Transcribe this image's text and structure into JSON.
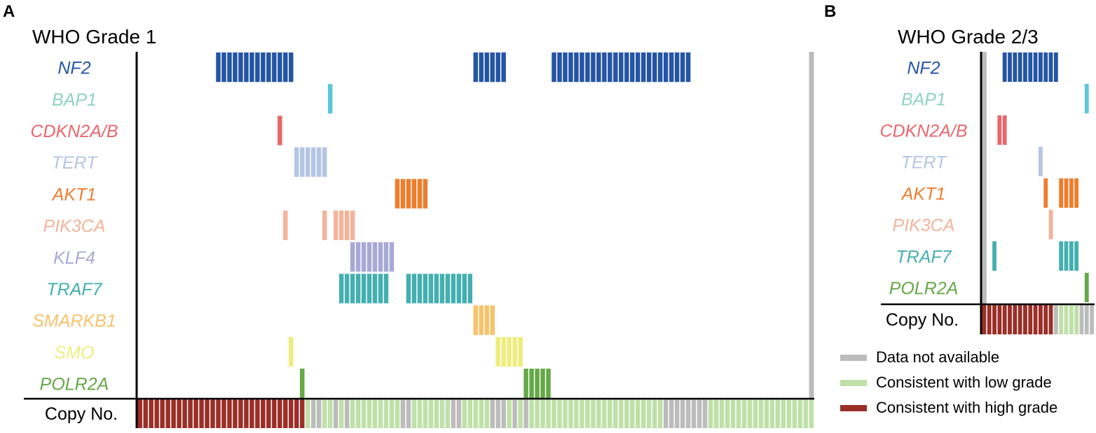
{
  "chart_data": {
    "type": "heatmap",
    "colors": {
      "NF2": "#2455a4",
      "BAP1": "#5cc6d8",
      "CDKN2A/B": "#e8676b",
      "TERT": "#b4c5e3",
      "AKT1": "#ef7d2c",
      "PIK3CA": "#f3b49a",
      "KLF4": "#a7a9d5",
      "TRAF7": "#44afb0",
      "SMARKB1": "#f7c36a",
      "SMO": "#eeec7d",
      "POLR2A": "#65a847",
      "na": "#bcbcbc",
      "low": "#bfe0a8",
      "high": "#9a2f28"
    },
    "label_colors": {
      "NF2": "#2455a4",
      "BAP1": "#8fd3bf",
      "CDKN2A/B": "#e8676b",
      "TERT": "#b4c5e3",
      "AKT1": "#ef7d2c",
      "PIK3CA": "#f3b49a",
      "KLF4": "#a7a9d5",
      "TRAF7": "#44afb0",
      "SMARKB1": "#f7c36a",
      "SMO": "#eeec7d",
      "POLR2A": "#65a847"
    },
    "panels": [
      {
        "letter": "A",
        "title": "WHO Grade 1",
        "n_samples": 121,
        "genes": [
          "NF2",
          "BAP1",
          "CDKN2A/B",
          "TERT",
          "AKT1",
          "PIK3CA",
          "KLF4",
          "TRAF7",
          "SMARKB1",
          "SMO",
          "POLR2A"
        ],
        "alterations": [
          {
            "gene": "NF2",
            "samples": [
              [
                14,
                27
              ],
              [
                60,
                65
              ],
              [
                74,
                98
              ]
            ]
          },
          {
            "gene": "BAP1",
            "samples": [
              [
                34,
                34
              ]
            ]
          },
          {
            "gene": "CDKN2A/B",
            "samples": [
              [
                25,
                25
              ]
            ]
          },
          {
            "gene": "TERT",
            "samples": [
              [
                28,
                33
              ]
            ]
          },
          {
            "gene": "AKT1",
            "samples": [
              [
                46,
                51
              ]
            ]
          },
          {
            "gene": "PIK3CA",
            "samples": [
              [
                26,
                26
              ],
              [
                33,
                33
              ],
              [
                35,
                38
              ]
            ]
          },
          {
            "gene": "KLF4",
            "samples": [
              [
                38,
                45
              ]
            ]
          },
          {
            "gene": "TRAF7",
            "samples": [
              [
                36,
                44
              ],
              [
                48,
                59
              ]
            ]
          },
          {
            "gene": "SMARKB1",
            "samples": [
              [
                60,
                63
              ]
            ]
          },
          {
            "gene": "SMO",
            "samples": [
              [
                27,
                27
              ],
              [
                64,
                68
              ]
            ]
          },
          {
            "gene": "POLR2A",
            "samples": [
              [
                29,
                29
              ],
              [
                69,
                73
              ]
            ]
          }
        ],
        "data_not_available_samples": [
          [
            120,
            120
          ]
        ],
        "copy_number": [
          {
            "status": "high",
            "samples": [
              [
                0,
                29
              ]
            ]
          },
          {
            "status": "low",
            "samples": [
              [
                30,
                30
              ]
            ]
          },
          {
            "status": "na",
            "samples": [
              [
                31,
                32
              ]
            ]
          },
          {
            "status": "low",
            "samples": [
              [
                33,
                34
              ]
            ]
          },
          {
            "status": "na",
            "samples": [
              [
                35,
                35
              ]
            ]
          },
          {
            "status": "low",
            "samples": [
              [
                36,
                35
              ]
            ]
          },
          {
            "status": "low",
            "samples": [
              [
                36,
                36
              ]
            ]
          },
          {
            "status": "na",
            "samples": [
              [
                37,
                37
              ]
            ]
          },
          {
            "status": "low",
            "samples": [
              [
                38,
                46
              ]
            ]
          },
          {
            "status": "na",
            "samples": [
              [
                47,
                48
              ]
            ]
          },
          {
            "status": "low",
            "samples": [
              [
                49,
                55
              ]
            ]
          },
          {
            "status": "na",
            "samples": [
              [
                56,
                57
              ]
            ]
          },
          {
            "status": "low",
            "samples": [
              [
                58,
                62
              ]
            ]
          },
          {
            "status": "na",
            "samples": [
              [
                63,
                65
              ]
            ]
          },
          {
            "status": "low",
            "samples": [
              [
                66,
                66
              ]
            ]
          },
          {
            "status": "na",
            "samples": [
              [
                67,
                67
              ]
            ]
          },
          {
            "status": "low",
            "samples": [
              [
                68,
                68
              ]
            ]
          },
          {
            "status": "na",
            "samples": [
              [
                69,
                69
              ]
            ]
          },
          {
            "status": "low",
            "samples": [
              [
                70,
                93
              ]
            ]
          },
          {
            "status": "na",
            "samples": [
              [
                94,
                101
              ]
            ]
          },
          {
            "status": "low",
            "samples": [
              [
                102,
                120
              ]
            ]
          }
        ]
      },
      {
        "letter": "B",
        "title": "WHO Grade 2/3",
        "n_samples": 22,
        "genes": [
          "NF2",
          "BAP1",
          "CDKN2A/B",
          "TERT",
          "AKT1",
          "PIK3CA",
          "TRAF7",
          "POLR2A"
        ],
        "alterations": [
          {
            "gene": "NF2",
            "samples": [
              [
                4,
                14
              ]
            ]
          },
          {
            "gene": "BAP1",
            "samples": [
              [
                20,
                20
              ]
            ]
          },
          {
            "gene": "CDKN2A/B",
            "samples": [
              [
                3,
                4
              ]
            ]
          },
          {
            "gene": "TERT",
            "samples": [
              [
                11,
                11
              ]
            ]
          },
          {
            "gene": "AKT1",
            "samples": [
              [
                12,
                12
              ],
              [
                15,
                18
              ]
            ]
          },
          {
            "gene": "PIK3CA",
            "samples": [
              [
                13,
                13
              ]
            ]
          },
          {
            "gene": "TRAF7",
            "samples": [
              [
                2,
                2
              ],
              [
                15,
                18
              ]
            ]
          },
          {
            "gene": "POLR2A",
            "samples": [
              [
                20,
                20
              ]
            ]
          }
        ],
        "data_not_available_samples": [
          [
            0,
            0
          ]
        ],
        "copy_number": [
          {
            "status": "high",
            "samples": [
              [
                0,
                13
              ]
            ]
          },
          {
            "status": "na",
            "samples": [
              [
                14,
                14
              ]
            ]
          },
          {
            "status": "low",
            "samples": [
              [
                15,
                18
              ]
            ]
          },
          {
            "status": "na",
            "samples": [
              [
                19,
                21
              ]
            ]
          }
        ]
      }
    ],
    "row_label": "Copy No.",
    "legend": [
      {
        "status": "na",
        "label": "Data not available"
      },
      {
        "status": "low",
        "label": "Consistent with low grade"
      },
      {
        "status": "high",
        "label": "Consistent with high grade"
      }
    ]
  }
}
